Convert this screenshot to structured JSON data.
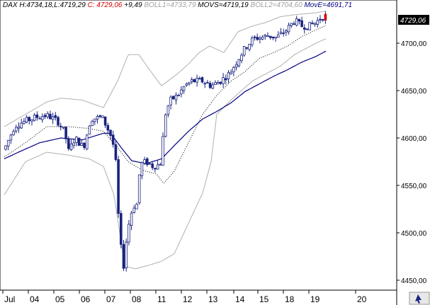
{
  "legend": {
    "symbol": "DAX",
    "high_label": "H:",
    "high": "4734,18",
    "low_label": "L:",
    "low": "4719,29",
    "close_label": "C:",
    "close": "4729,06",
    "change": "+9,49",
    "boll1_label": "BOLL1=",
    "boll1": "4733,79",
    "movs_label": "MOVS=",
    "movs": "4719,19",
    "boll2_label": "BOLL2=",
    "boll2": "4704,60",
    "move_label": "MovE=",
    "move": "4691,71"
  },
  "colors": {
    "candle": "#1a237e",
    "mov_e": "#000080",
    "bands": "#b0b0b0",
    "movs": "#000000",
    "close_red": "#d40000",
    "last_price_bg": "#000000",
    "last_price_text": "#ffffff"
  },
  "last_price_label": "4729,06",
  "chart_data": {
    "type": "candlestick",
    "ylim": [
      4440,
      4738
    ],
    "y_ticks": [
      "4450,00",
      "4500,00",
      "4550,00",
      "4600,00",
      "4650,00",
      "4700,00"
    ],
    "y_tick_values": [
      4450,
      4500,
      4550,
      4600,
      4650,
      4700
    ],
    "x_ticks": [
      "Jul",
      "04",
      "05",
      "06",
      "07",
      "08",
      "11",
      "12",
      "13",
      "14",
      "15",
      "18",
      "19",
      "20"
    ],
    "grid": false,
    "legend_position": "top-left",
    "series": [
      {
        "name": "BOLL1",
        "style": "upper-band"
      },
      {
        "name": "MOVS",
        "style": "dotted"
      },
      {
        "name": "BOLL2",
        "style": "lower-band"
      },
      {
        "name": "MovE",
        "style": "line"
      }
    ],
    "anchors": [
      [
        0,
        4588
      ],
      [
        15,
        4613
      ],
      [
        30,
        4618
      ],
      [
        45,
        4622
      ],
      [
        60,
        4624
      ],
      [
        75,
        4618
      ],
      [
        86,
        4605
      ],
      [
        90,
        4585
      ],
      [
        100,
        4600
      ],
      [
        112,
        4590
      ],
      [
        122,
        4620
      ],
      [
        138,
        4622
      ],
      [
        147,
        4608
      ],
      [
        152,
        4600
      ],
      [
        157,
        4580
      ],
      [
        161,
        4520
      ],
      [
        164,
        4490
      ],
      [
        168,
        4462
      ],
      [
        172,
        4490
      ],
      [
        177,
        4515
      ],
      [
        182,
        4528
      ],
      [
        187,
        4530
      ],
      [
        192,
        4572
      ],
      [
        200,
        4575
      ],
      [
        210,
        4570
      ],
      [
        220,
        4572
      ],
      [
        228,
        4628
      ],
      [
        235,
        4640
      ],
      [
        245,
        4645
      ],
      [
        255,
        4655
      ],
      [
        265,
        4660
      ],
      [
        280,
        4660
      ],
      [
        292,
        4655
      ],
      [
        305,
        4660
      ],
      [
        318,
        4668
      ],
      [
        330,
        4683
      ],
      [
        340,
        4695
      ],
      [
        352,
        4705
      ],
      [
        362,
        4706
      ],
      [
        372,
        4708
      ],
      [
        384,
        4706
      ],
      [
        396,
        4712
      ],
      [
        410,
        4724
      ],
      [
        420,
        4718
      ],
      [
        430,
        4718
      ],
      [
        440,
        4722
      ],
      [
        448,
        4727
      ],
      [
        454,
        4729
      ]
    ],
    "boll1_anchors": [
      [
        0,
        4612
      ],
      [
        30,
        4625
      ],
      [
        60,
        4638
      ],
      [
        80,
        4642
      ],
      [
        110,
        4640
      ],
      [
        140,
        4632
      ],
      [
        160,
        4660
      ],
      [
        175,
        4688
      ],
      [
        190,
        4688
      ],
      [
        205,
        4672
      ],
      [
        222,
        4655
      ],
      [
        245,
        4668
      ],
      [
        260,
        4678
      ],
      [
        275,
        4690
      ],
      [
        290,
        4697
      ],
      [
        310,
        4690
      ],
      [
        330,
        4712
      ],
      [
        350,
        4718
      ],
      [
        370,
        4722
      ],
      [
        390,
        4728
      ],
      [
        410,
        4730
      ],
      [
        440,
        4732
      ],
      [
        455,
        4734
      ]
    ],
    "boll2_anchors": [
      [
        0,
        4540
      ],
      [
        30,
        4575
      ],
      [
        60,
        4585
      ],
      [
        90,
        4582
      ],
      [
        120,
        4578
      ],
      [
        140,
        4570
      ],
      [
        155,
        4540
      ],
      [
        170,
        4465
      ],
      [
        185,
        4462
      ],
      [
        205,
        4466
      ],
      [
        222,
        4470
      ],
      [
        240,
        4478
      ],
      [
        260,
        4510
      ],
      [
        280,
        4542
      ],
      [
        292,
        4575
      ],
      [
        300,
        4625
      ],
      [
        320,
        4640
      ],
      [
        350,
        4660
      ],
      [
        370,
        4668
      ],
      [
        390,
        4676
      ],
      [
        410,
        4688
      ],
      [
        440,
        4700
      ],
      [
        455,
        4705
      ]
    ],
    "movs_anchors": [
      [
        0,
        4580
      ],
      [
        30,
        4595
      ],
      [
        60,
        4612
      ],
      [
        90,
        4612
      ],
      [
        120,
        4610
      ],
      [
        140,
        4607
      ],
      [
        160,
        4590
      ],
      [
        175,
        4575
      ],
      [
        195,
        4566
      ],
      [
        215,
        4562
      ],
      [
        225,
        4552
      ],
      [
        240,
        4565
      ],
      [
        260,
        4595
      ],
      [
        280,
        4625
      ],
      [
        300,
        4645
      ],
      [
        320,
        4660
      ],
      [
        340,
        4670
      ],
      [
        360,
        4684
      ],
      [
        380,
        4690
      ],
      [
        400,
        4697
      ],
      [
        420,
        4707
      ],
      [
        440,
        4714
      ],
      [
        455,
        4719
      ]
    ],
    "move_anchors": [
      [
        0,
        4578
      ],
      [
        20,
        4585
      ],
      [
        50,
        4595
      ],
      [
        80,
        4600
      ],
      [
        110,
        4598
      ],
      [
        140,
        4605
      ],
      [
        150,
        4605
      ],
      [
        165,
        4590
      ],
      [
        180,
        4576
      ],
      [
        200,
        4573
      ],
      [
        222,
        4578
      ],
      [
        240,
        4592
      ],
      [
        260,
        4607
      ],
      [
        280,
        4620
      ],
      [
        300,
        4628
      ],
      [
        320,
        4637
      ],
      [
        340,
        4649
      ],
      [
        360,
        4657
      ],
      [
        380,
        4665
      ],
      [
        400,
        4672
      ],
      [
        420,
        4680
      ],
      [
        440,
        4686
      ],
      [
        455,
        4692
      ]
    ]
  }
}
